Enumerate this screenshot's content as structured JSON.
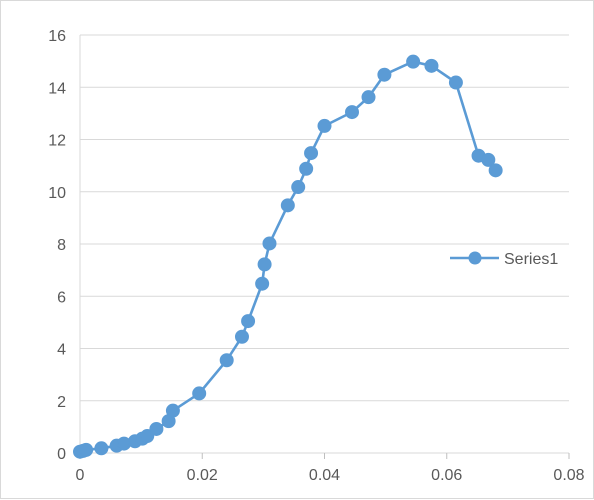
{
  "chart_data": {
    "type": "scatter",
    "title": "",
    "xlabel": "",
    "ylabel": "",
    "xlim": [
      0,
      0.08
    ],
    "ylim": [
      0,
      16
    ],
    "x_ticks": [
      "0",
      "0.02",
      "0.04",
      "0.06",
      "0.08"
    ],
    "y_ticks": [
      "0",
      "2",
      "4",
      "6",
      "8",
      "10",
      "12",
      "14",
      "16"
    ],
    "grid": "horizontal",
    "legend_position": "right",
    "color": "#5b9bd5",
    "series": [
      {
        "name": "Series1",
        "x": [
          0.0,
          0.0005,
          0.001,
          0.0035,
          0.006,
          0.0072,
          0.009,
          0.0102,
          0.011,
          0.0125,
          0.0145,
          0.0152,
          0.0195,
          0.024,
          0.0265,
          0.0275,
          0.0298,
          0.0302,
          0.031,
          0.034,
          0.0357,
          0.037,
          0.0378,
          0.04,
          0.0445,
          0.0472,
          0.0498,
          0.0545,
          0.0575,
          0.0615,
          0.0652,
          0.0668,
          0.068
        ],
        "y": [
          0.05,
          0.08,
          0.12,
          0.18,
          0.28,
          0.36,
          0.45,
          0.55,
          0.65,
          0.92,
          1.22,
          1.62,
          2.28,
          3.55,
          4.45,
          5.05,
          6.48,
          7.22,
          8.02,
          9.48,
          10.18,
          10.88,
          11.48,
          12.52,
          13.05,
          13.62,
          14.48,
          14.98,
          14.82,
          14.18,
          11.38,
          11.22,
          10.82
        ]
      }
    ]
  }
}
